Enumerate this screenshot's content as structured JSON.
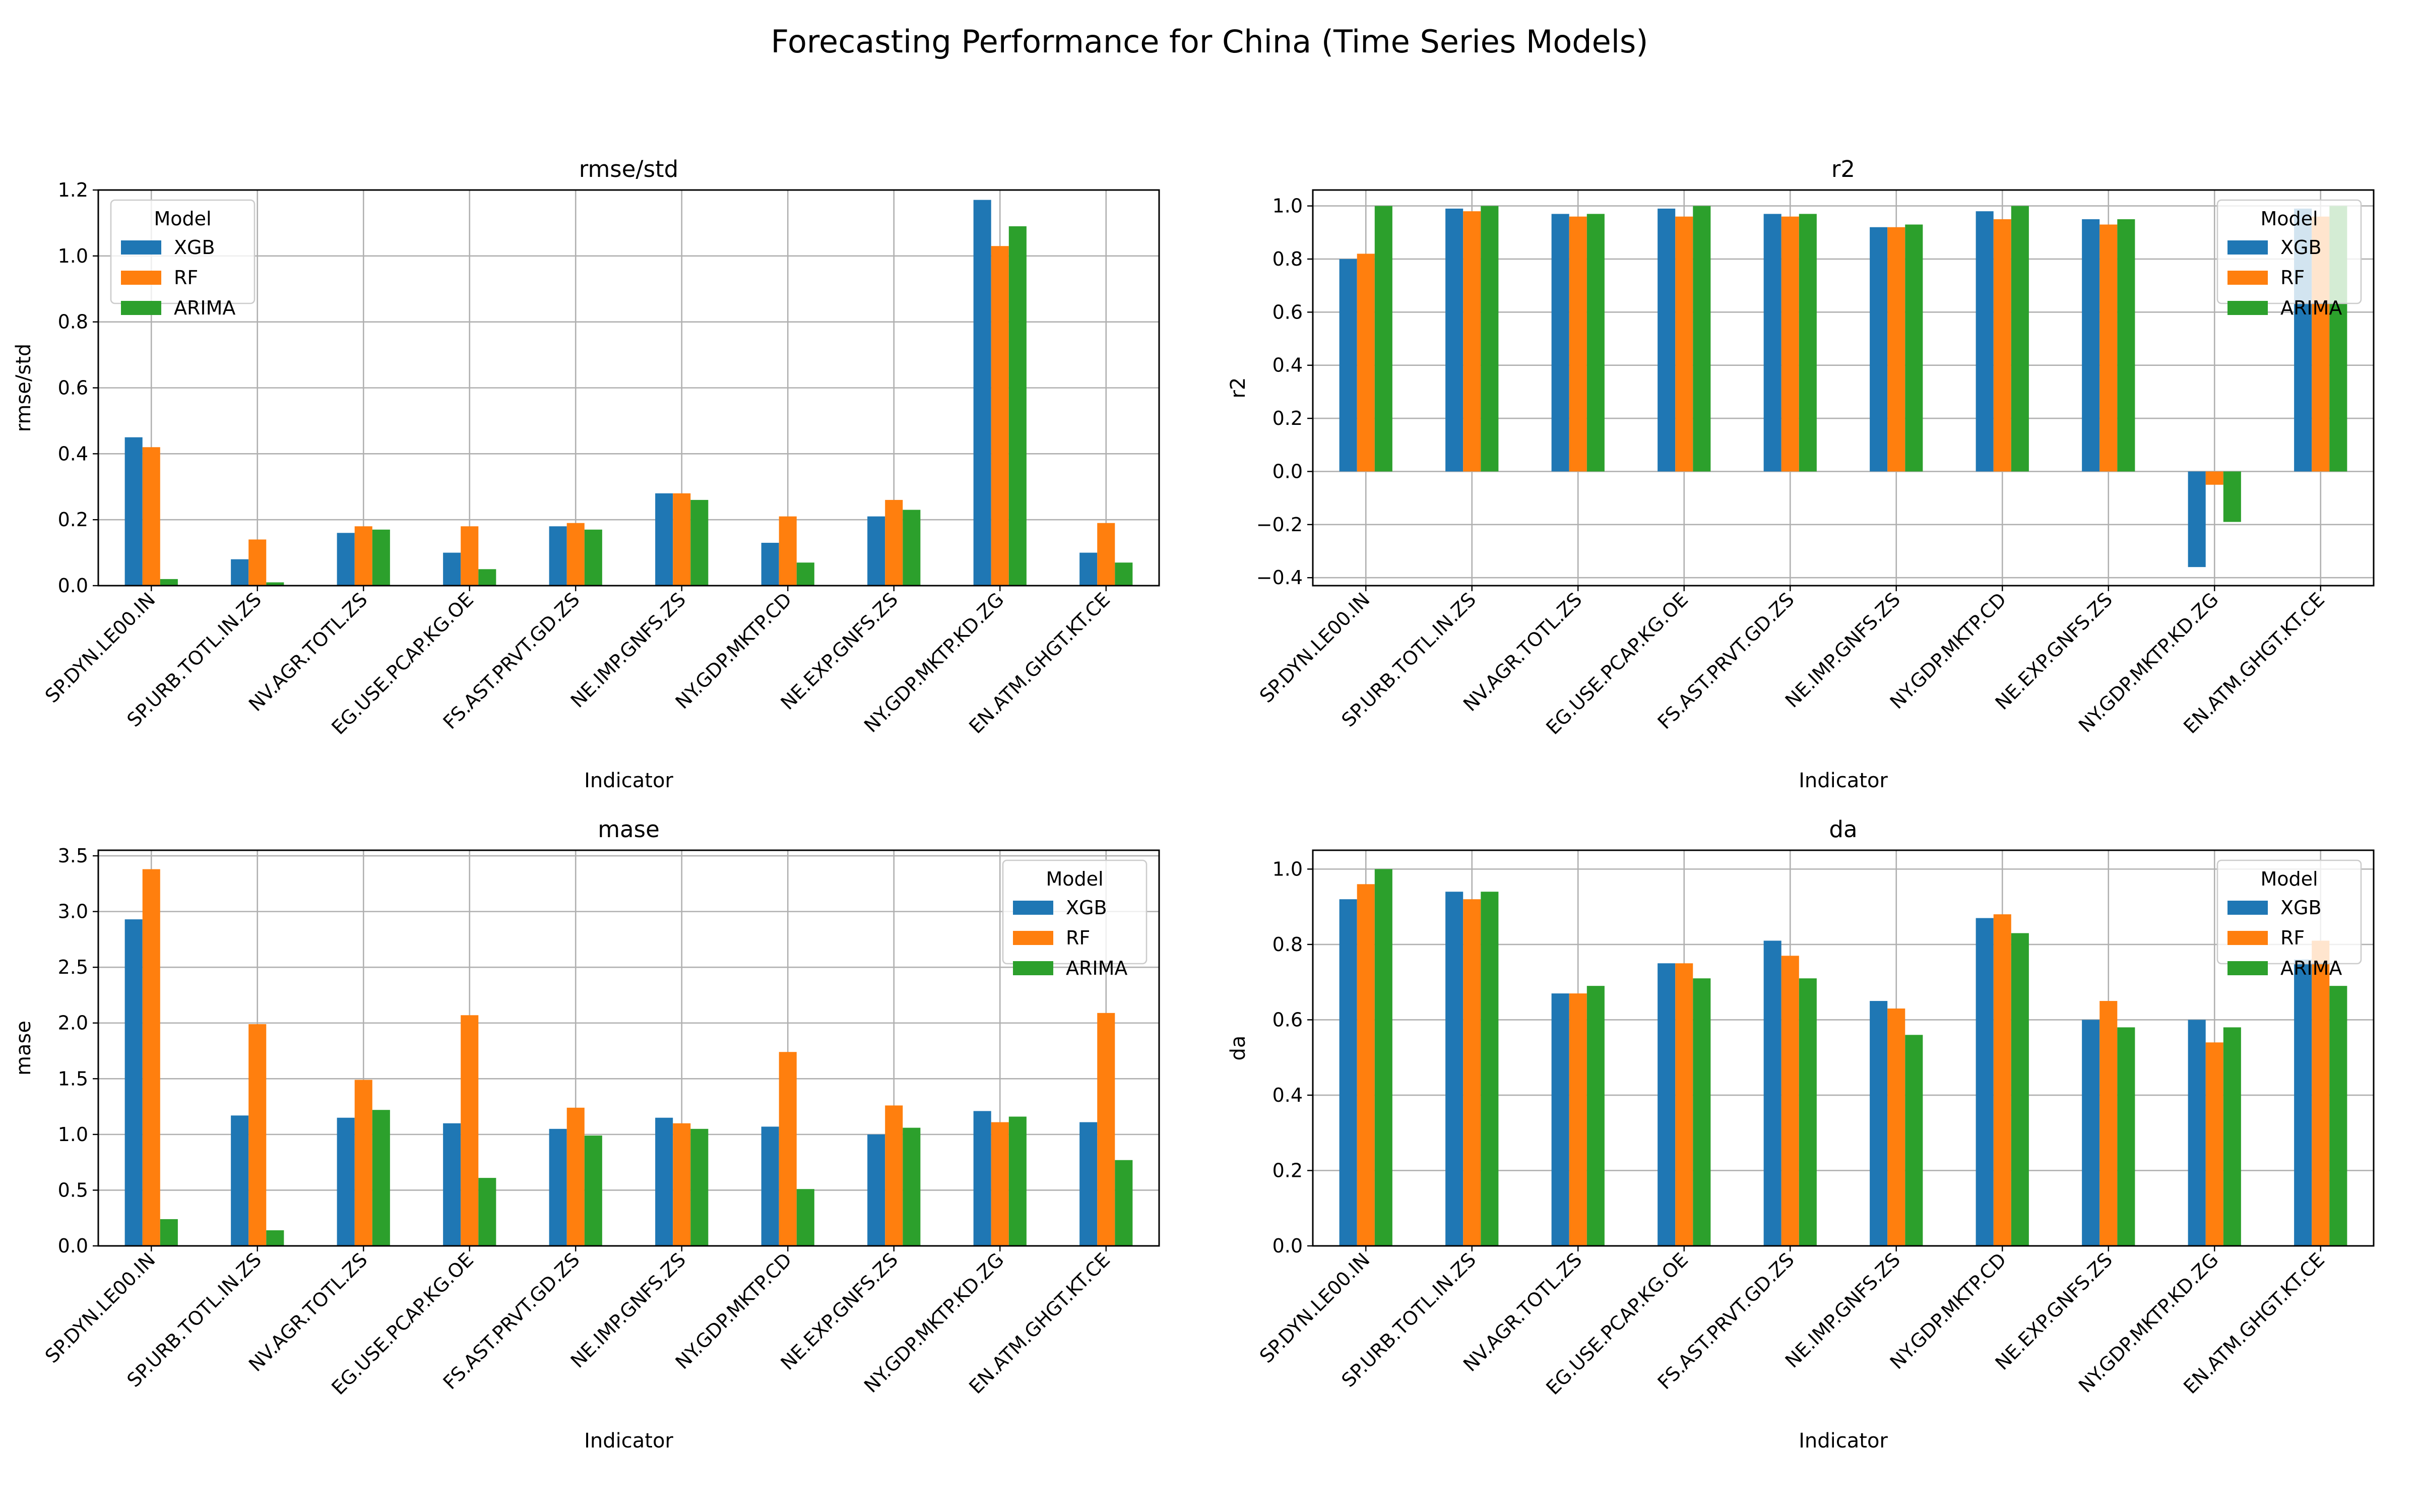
{
  "figure_title": "Forecasting Performance for China (Time Series Models)",
  "colors": {
    "XGB": "#1f77b4",
    "RF": "#ff7f0e",
    "ARIMA": "#2ca02c",
    "grid": "#b0b0b0",
    "axis": "#000000"
  },
  "chart_data": [
    {
      "type": "bar",
      "title": "rmse/std",
      "xlabel": "Indicator",
      "ylabel": "rmse/std",
      "ylim": [
        0,
        1.2
      ],
      "yticks": [
        "0.0",
        "0.2",
        "0.4",
        "0.6",
        "0.8",
        "1.0",
        "1.2"
      ],
      "grid": true,
      "legend": {
        "title": "Model",
        "loc": "upper left"
      },
      "categories": [
        "SP.DYN.LE00.IN",
        "SP.URB.TOTL.IN.ZS",
        "NV.AGR.TOTL.ZS",
        "EG.USE.PCAP.KG.OE",
        "FS.AST.PRVT.GD.ZS",
        "NE.IMP.GNFS.ZS",
        "NY.GDP.MKTP.CD",
        "NE.EXP.GNFS.ZS",
        "NY.GDP.MKTP.KD.ZG",
        "EN.ATM.GHGT.KT.CE"
      ],
      "series": [
        {
          "name": "XGB",
          "values": [
            0.45,
            0.08,
            0.16,
            0.1,
            0.18,
            0.28,
            0.13,
            0.21,
            1.17,
            0.1
          ]
        },
        {
          "name": "RF",
          "values": [
            0.42,
            0.14,
            0.18,
            0.18,
            0.19,
            0.28,
            0.21,
            0.26,
            1.03,
            0.19
          ]
        },
        {
          "name": "ARIMA",
          "values": [
            0.02,
            0.01,
            0.17,
            0.05,
            0.17,
            0.26,
            0.07,
            0.23,
            1.09,
            0.07
          ]
        }
      ]
    },
    {
      "type": "bar",
      "title": "r2",
      "xlabel": "Indicator",
      "ylabel": "r2",
      "ylim": [
        -0.43,
        1.06
      ],
      "yticks": [
        "−0.4",
        "−0.2",
        "0.0",
        "0.2",
        "0.4",
        "0.6",
        "0.8",
        "1.0"
      ],
      "grid": true,
      "legend": {
        "title": "Model",
        "loc": "upper right"
      },
      "categories": [
        "SP.DYN.LE00.IN",
        "SP.URB.TOTL.IN.ZS",
        "NV.AGR.TOTL.ZS",
        "EG.USE.PCAP.KG.OE",
        "FS.AST.PRVT.GD.ZS",
        "NE.IMP.GNFS.ZS",
        "NY.GDP.MKTP.CD",
        "NE.EXP.GNFS.ZS",
        "NY.GDP.MKTP.KD.ZG",
        "EN.ATM.GHGT.KT.CE"
      ],
      "series": [
        {
          "name": "XGB",
          "values": [
            0.8,
            0.99,
            0.97,
            0.99,
            0.97,
            0.92,
            0.98,
            0.95,
            -0.36,
            0.99
          ]
        },
        {
          "name": "RF",
          "values": [
            0.82,
            0.98,
            0.96,
            0.96,
            0.96,
            0.92,
            0.95,
            0.93,
            -0.05,
            0.96
          ]
        },
        {
          "name": "ARIMA",
          "values": [
            1.0,
            1.0,
            0.97,
            1.0,
            0.97,
            0.93,
            1.0,
            0.95,
            -0.19,
            1.0
          ]
        }
      ]
    },
    {
      "type": "bar",
      "title": "mase",
      "xlabel": "Indicator",
      "ylabel": "mase",
      "ylim": [
        0,
        3.55
      ],
      "yticks": [
        "0.0",
        "0.5",
        "1.0",
        "1.5",
        "2.0",
        "2.5",
        "3.0",
        "3.5"
      ],
      "grid": true,
      "legend": {
        "title": "Model",
        "loc": "upper right"
      },
      "categories": [
        "SP.DYN.LE00.IN",
        "SP.URB.TOTL.IN.ZS",
        "NV.AGR.TOTL.ZS",
        "EG.USE.PCAP.KG.OE",
        "FS.AST.PRVT.GD.ZS",
        "NE.IMP.GNFS.ZS",
        "NY.GDP.MKTP.CD",
        "NE.EXP.GNFS.ZS",
        "NY.GDP.MKTP.KD.ZG",
        "EN.ATM.GHGT.KT.CE"
      ],
      "series": [
        {
          "name": "XGB",
          "values": [
            2.93,
            1.17,
            1.15,
            1.1,
            1.05,
            1.15,
            1.07,
            1.0,
            1.21,
            1.11
          ]
        },
        {
          "name": "RF",
          "values": [
            3.38,
            1.99,
            1.49,
            2.07,
            1.24,
            1.1,
            1.74,
            1.26,
            1.11,
            2.09
          ]
        },
        {
          "name": "ARIMA",
          "values": [
            0.24,
            0.14,
            1.22,
            0.61,
            0.99,
            1.05,
            0.51,
            1.06,
            1.16,
            0.77
          ]
        }
      ]
    },
    {
      "type": "bar",
      "title": "da",
      "xlabel": "Indicator",
      "ylabel": "da",
      "ylim": [
        0,
        1.05
      ],
      "yticks": [
        "0.0",
        "0.2",
        "0.4",
        "0.6",
        "0.8",
        "1.0"
      ],
      "grid": true,
      "legend": {
        "title": "Model",
        "loc": "upper right"
      },
      "categories": [
        "SP.DYN.LE00.IN",
        "SP.URB.TOTL.IN.ZS",
        "NV.AGR.TOTL.ZS",
        "EG.USE.PCAP.KG.OE",
        "FS.AST.PRVT.GD.ZS",
        "NE.IMP.GNFS.ZS",
        "NY.GDP.MKTP.CD",
        "NE.EXP.GNFS.ZS",
        "NY.GDP.MKTP.KD.ZG",
        "EN.ATM.GHGT.KT.CE"
      ],
      "series": [
        {
          "name": "XGB",
          "values": [
            0.92,
            0.94,
            0.67,
            0.75,
            0.81,
            0.65,
            0.87,
            0.6,
            0.6,
            0.76
          ]
        },
        {
          "name": "RF",
          "values": [
            0.96,
            0.92,
            0.67,
            0.75,
            0.77,
            0.63,
            0.88,
            0.65,
            0.54,
            0.81
          ]
        },
        {
          "name": "ARIMA",
          "values": [
            1.0,
            0.94,
            0.69,
            0.71,
            0.71,
            0.56,
            0.83,
            0.58,
            0.58,
            0.69
          ]
        }
      ]
    }
  ]
}
